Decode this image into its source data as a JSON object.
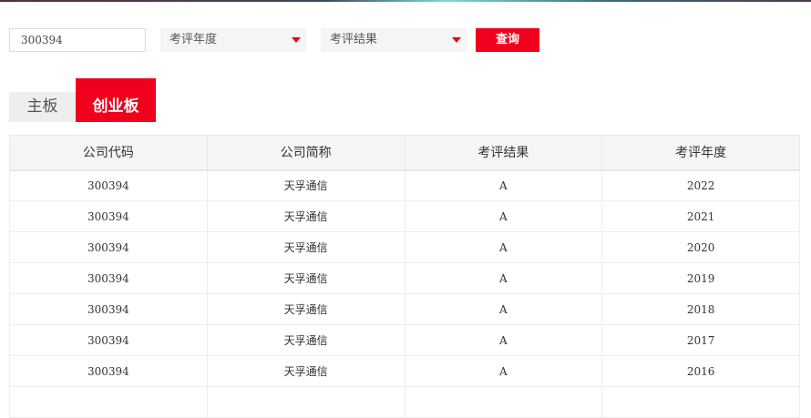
{
  "search": {
    "value": "300394"
  },
  "filters": [
    {
      "label": "考评年度"
    },
    {
      "label": "考评结果"
    }
  ],
  "query_label": "查询",
  "tabs": [
    {
      "label": "主板"
    },
    {
      "label": "创业板",
      "active": true
    }
  ],
  "colors": {
    "accent": "#f0001c"
  },
  "table": {
    "headers": [
      "公司代码",
      "公司简称",
      "考评结果",
      "考评年度"
    ],
    "rows": [
      [
        "300394",
        "天孚通信",
        "A",
        "2022"
      ],
      [
        "300394",
        "天孚通信",
        "A",
        "2021"
      ],
      [
        "300394",
        "天孚通信",
        "A",
        "2020"
      ],
      [
        "300394",
        "天孚通信",
        "A",
        "2019"
      ],
      [
        "300394",
        "天孚通信",
        "A",
        "2018"
      ],
      [
        "300394",
        "天孚通信",
        "A",
        "2017"
      ],
      [
        "300394",
        "天孚通信",
        "A",
        "2016"
      ],
      [
        "",
        "",
        "",
        ""
      ]
    ]
  }
}
